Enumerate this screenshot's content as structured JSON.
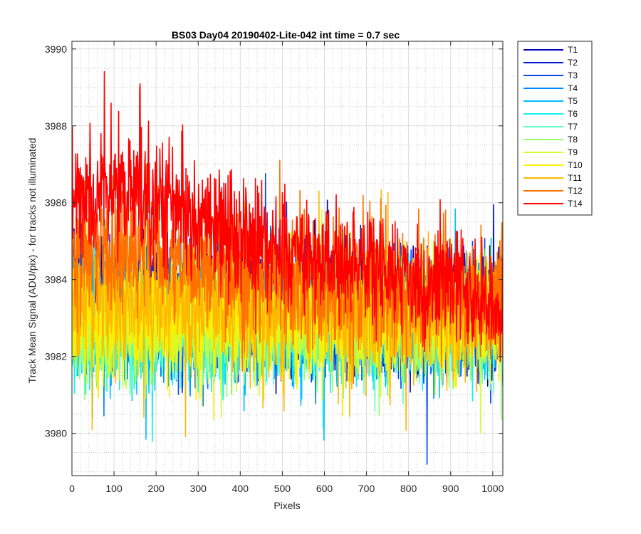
{
  "chart_data": {
    "type": "line",
    "title": "BS03 Day04 20190402-Lite-042 int time = 0.7 sec",
    "xlabel": "Pixels",
    "ylabel": "Track Mean Signal (ADU/pix) - for tracks not illuminated",
    "xlim": [
      0,
      1024
    ],
    "ylim": [
      3978.9,
      3990.2
    ],
    "xticks": [
      0,
      100,
      200,
      300,
      400,
      500,
      600,
      700,
      800,
      900,
      1000
    ],
    "yticks": [
      3980,
      3982,
      3984,
      3986,
      3988,
      3990
    ],
    "grid": true,
    "minor_grid": true,
    "legend_position": "outside-right",
    "series": [
      {
        "name": "T1",
        "color": "#0000b4",
        "mean_start": 3983.7,
        "mean_end": 3983.0,
        "spread": 1.45,
        "values": null
      },
      {
        "name": "T2",
        "color": "#0018d8",
        "mean_start": 3983.5,
        "mean_end": 3983.0,
        "spread": 1.45,
        "values": null
      },
      {
        "name": "T3",
        "color": "#0048f0",
        "mean_start": 3983.3,
        "mean_end": 3982.9,
        "spread": 1.45,
        "values": null
      },
      {
        "name": "T4",
        "color": "#0088ff",
        "mean_start": 3983.0,
        "mean_end": 3982.9,
        "spread": 1.4,
        "values": null
      },
      {
        "name": "T5",
        "color": "#00c0ff",
        "mean_start": 3982.8,
        "mean_end": 3982.9,
        "spread": 1.35,
        "values": null
      },
      {
        "name": "T6",
        "color": "#10f0f0",
        "mean_start": 3982.7,
        "mean_end": 3982.9,
        "spread": 1.35,
        "values": null
      },
      {
        "name": "T7",
        "color": "#60ffc0",
        "mean_start": 3982.8,
        "mean_end": 3982.9,
        "spread": 1.35,
        "values": null
      },
      {
        "name": "T8",
        "color": "#98ff68",
        "mean_start": 3982.9,
        "mean_end": 3983.0,
        "spread": 1.35,
        "values": null
      },
      {
        "name": "T9",
        "color": "#d0ff30",
        "mean_start": 3983.0,
        "mean_end": 3983.0,
        "spread": 1.4,
        "values": null
      },
      {
        "name": "T10",
        "color": "#ffee00",
        "mean_start": 3983.1,
        "mean_end": 3983.0,
        "spread": 1.45,
        "values": null
      },
      {
        "name": "T11",
        "color": "#ffb800",
        "mean_start": 3983.5,
        "mean_end": 3983.1,
        "spread": 1.45,
        "values": null
      },
      {
        "name": "T12",
        "color": "#ff7000",
        "mean_start": 3984.7,
        "mean_end": 3983.4,
        "spread": 1.5,
        "values": null
      },
      {
        "name": "T14",
        "color": "#ff0000",
        "mean_start": 3986.2,
        "mean_end": 3983.4,
        "spread": 1.4,
        "values": null
      }
    ]
  }
}
